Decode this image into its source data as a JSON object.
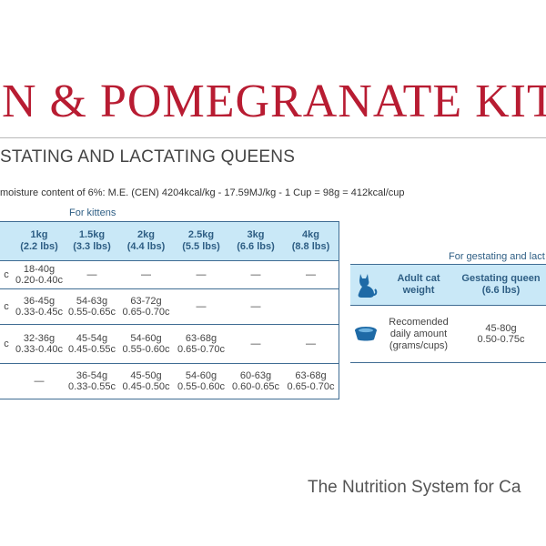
{
  "title": "N & POMEGRANATE KITTE",
  "subtitle": "STATING AND LACTATING QUEENS",
  "energy_note": "moisture content of 6%: M.E. (CEN) 4204kcal/kg - 17.59MJ/kg - 1 Cup = 98g = 412kcal/cup",
  "kitten_table": {
    "caption": "For kittens",
    "headers": [
      {
        "weight": "",
        "lbs": ""
      },
      {
        "weight": "1kg",
        "lbs": "(2.2 lbs)"
      },
      {
        "weight": "1.5kg",
        "lbs": "(3.3 lbs)"
      },
      {
        "weight": "2kg",
        "lbs": "(4.4 lbs)"
      },
      {
        "weight": "2.5kg",
        "lbs": "(5.5 lbs)"
      },
      {
        "weight": "3kg",
        "lbs": "(6.6 lbs)"
      },
      {
        "weight": "4kg",
        "lbs": "(8.8 lbs)"
      }
    ],
    "rows": [
      [
        [
          "c",
          ""
        ],
        [
          "18-40g",
          "0.20-0.40c"
        ],
        [
          "—",
          ""
        ],
        [
          "—",
          ""
        ],
        [
          "—",
          ""
        ],
        [
          "—",
          ""
        ],
        [
          "—",
          ""
        ]
      ],
      [
        [
          "c",
          ""
        ],
        [
          "36-45g",
          "0.33-0.45c"
        ],
        [
          "54-63g",
          "0.55-0.65c"
        ],
        [
          "63-72g",
          "0.65-0.70c"
        ],
        [
          "—",
          ""
        ],
        [
          "—",
          ""
        ],
        [
          "",
          ""
        ]
      ],
      [
        [
          "c",
          ""
        ],
        [
          "32-36g",
          "0.33-0.40c"
        ],
        [
          "45-54g",
          "0.45-0.55c"
        ],
        [
          "54-60g",
          "0.55-0.60c"
        ],
        [
          "63-68g",
          "0.65-0.70c"
        ],
        [
          "—",
          ""
        ],
        [
          "—",
          ""
        ]
      ],
      [
        [
          "",
          ""
        ],
        [
          "—",
          ""
        ],
        [
          "36-54g",
          "0.33-0.55c"
        ],
        [
          "45-50g",
          "0.45-0.50c"
        ],
        [
          "54-60g",
          "0.55-0.60c"
        ],
        [
          "60-63g",
          "0.60-0.65c"
        ],
        [
          "63-68g",
          "0.65-0.70c"
        ]
      ]
    ]
  },
  "gest_table": {
    "caption": "For gestating and lact",
    "header_label": "Adult cat weight",
    "header_value_1": "Gestating queen",
    "header_value_2": "(6.6 lbs)",
    "row_label": "Recomended daily amount (grams/cups)",
    "row_value_1": "45-80g",
    "row_value_2": "0.50-0.75c"
  },
  "tagline": "The Nutrition System for Ca",
  "colors": {
    "brand_red": "#b81c32",
    "header_blue": "#c9e8f7",
    "line_blue": "#3f6c93",
    "icon_blue": "#1e6aa6"
  },
  "icons": [
    "cat-silhouette-icon",
    "food-bowl-icon"
  ]
}
